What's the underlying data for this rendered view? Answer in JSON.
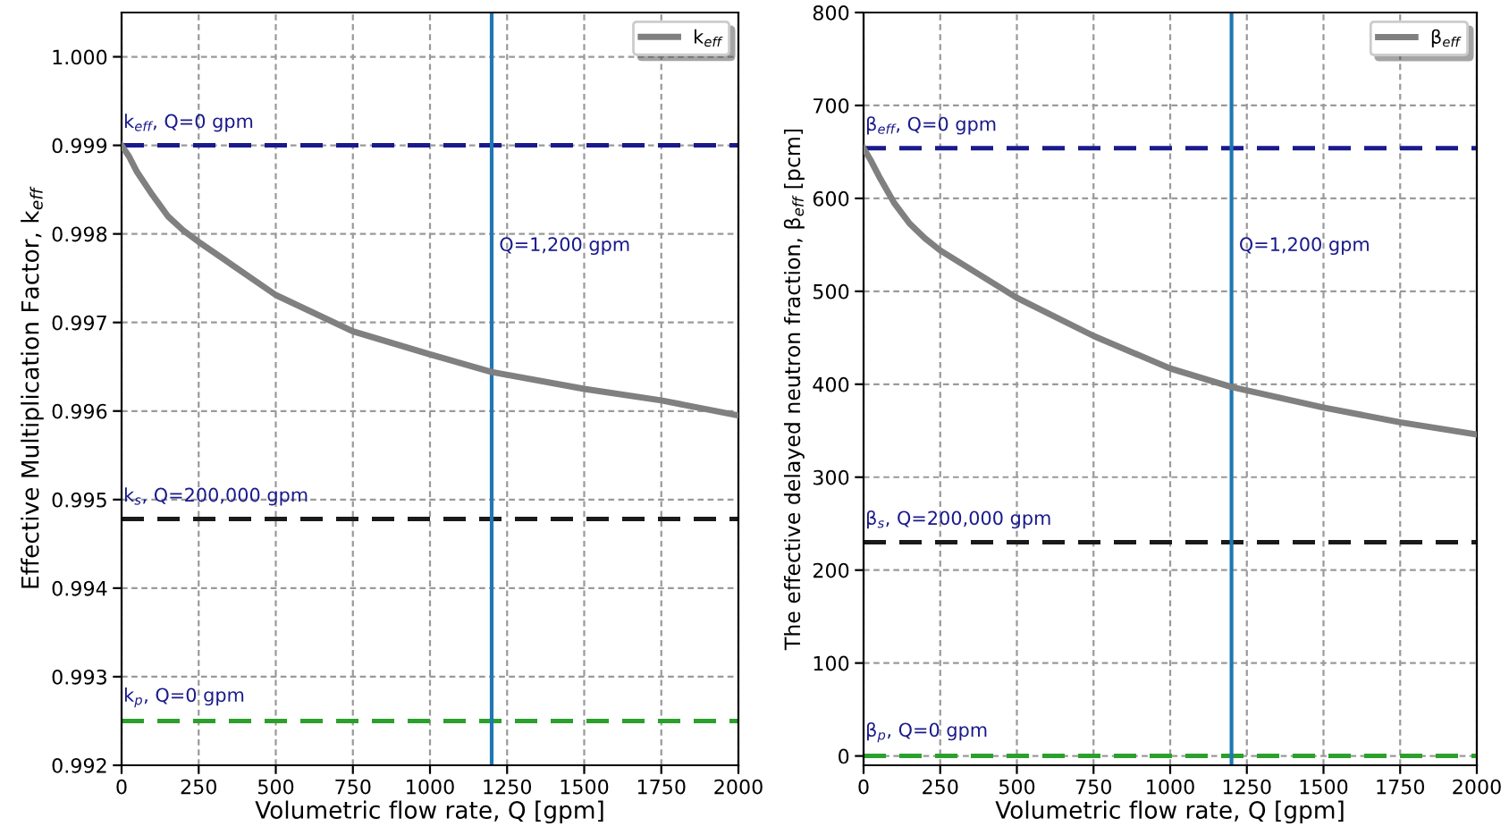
{
  "chart_data": [
    {
      "type": "line",
      "xlabel": "Volumetric flow rate, Q [gpm]",
      "ylabel": "Effective Multiplication Factor, k$_{eff}$",
      "x": [
        0,
        25,
        50,
        100,
        150,
        200,
        250,
        500,
        750,
        1000,
        1200,
        1500,
        1750,
        2000
      ],
      "series": [
        {
          "name": "k$_{eff}$",
          "color": "#808080",
          "values": [
            0.999,
            0.99887,
            0.9987,
            0.99844,
            0.9982,
            0.99804,
            0.99791,
            0.99731,
            0.9969,
            0.99664,
            0.99644,
            0.99625,
            0.99612,
            0.99595
          ]
        }
      ],
      "xlim": [
        0,
        2000
      ],
      "xticks": [
        0,
        250,
        500,
        750,
        1000,
        1250,
        1500,
        1750,
        2000
      ],
      "ylim": [
        0.992,
        1.0005
      ],
      "yticks": [
        {
          "value": 0.992,
          "label": "0.992"
        },
        {
          "value": 0.993,
          "label": "0.993"
        },
        {
          "value": 0.994,
          "label": "0.994"
        },
        {
          "value": 0.995,
          "label": "0.995"
        },
        {
          "value": 0.996,
          "label": "0.996"
        },
        {
          "value": 0.997,
          "label": "0.997"
        },
        {
          "value": 0.998,
          "label": "0.998"
        },
        {
          "value": 0.999,
          "label": "0.999"
        },
        {
          "value": 1.0,
          "label": "1.000"
        }
      ],
      "ref_lines": [
        {
          "axis": "y",
          "value": 0.999,
          "color": "#1a1a8c",
          "line_style": "dashed"
        },
        {
          "axis": "y",
          "value": 0.99478,
          "color": "#1a1a1a",
          "line_style": "dashed"
        },
        {
          "axis": "y",
          "value": 0.9925,
          "color": "#2ca02c",
          "line_style": "dashed"
        },
        {
          "axis": "x",
          "value": 1200,
          "label": "Q=1,200 gpm",
          "color": "#1f77b4",
          "line_style": "solid"
        }
      ],
      "annotations": [
        {
          "text": "k$_{eff}$, Q=0 gpm",
          "y": 0.999
        },
        {
          "text": "k$_{s}$, Q=200,000 gpm",
          "y": 0.99478
        },
        {
          "text": "k$_{p}$, Q=0 gpm",
          "y": 0.9925
        }
      ],
      "grid": true,
      "legend": "top right",
      "marker": "none",
      "line_style": "solid"
    },
    {
      "type": "line",
      "xlabel": "Volumetric flow rate, Q [gpm]",
      "ylabel": "The effective delayed neutron fraction, β$_{eff}$ [pcm]",
      "x": [
        0,
        25,
        50,
        100,
        150,
        200,
        250,
        500,
        750,
        1000,
        1200,
        1500,
        1750,
        2000
      ],
      "series": [
        {
          "name": "β$_{eff}$",
          "color": "#808080",
          "values": [
            654,
            640,
            624,
            595,
            573,
            557,
            544,
            493,
            452,
            417,
            397,
            375,
            359,
            346
          ]
        }
      ],
      "xlim": [
        0,
        2000
      ],
      "xticks": [
        0,
        250,
        500,
        750,
        1000,
        1250,
        1500,
        1750,
        2000
      ],
      "ylim": [
        -10,
        800
      ],
      "yticks": [
        0,
        100,
        200,
        300,
        400,
        500,
        600,
        700,
        800
      ],
      "ref_lines": [
        {
          "axis": "y",
          "value": 654,
          "color": "#1a1a8c",
          "line_style": "dashed"
        },
        {
          "axis": "y",
          "value": 230,
          "color": "#1a1a1a",
          "line_style": "dashed"
        },
        {
          "axis": "y",
          "value": 0,
          "color": "#2ca02c",
          "line_style": "dashed"
        },
        {
          "axis": "x",
          "value": 1200,
          "label": "Q=1,200 gpm",
          "color": "#1f77b4",
          "line_style": "solid"
        }
      ],
      "annotations": [
        {
          "text": "β$_{eff}$, Q=0 gpm",
          "y": 654
        },
        {
          "text": "β$_{s}$, Q=200,000 gpm",
          "y": 230
        },
        {
          "text": "β$_{p}$, Q=0 gpm",
          "y": 0
        }
      ],
      "grid": true,
      "legend": "top right",
      "marker": "none",
      "line_style": "solid"
    }
  ]
}
